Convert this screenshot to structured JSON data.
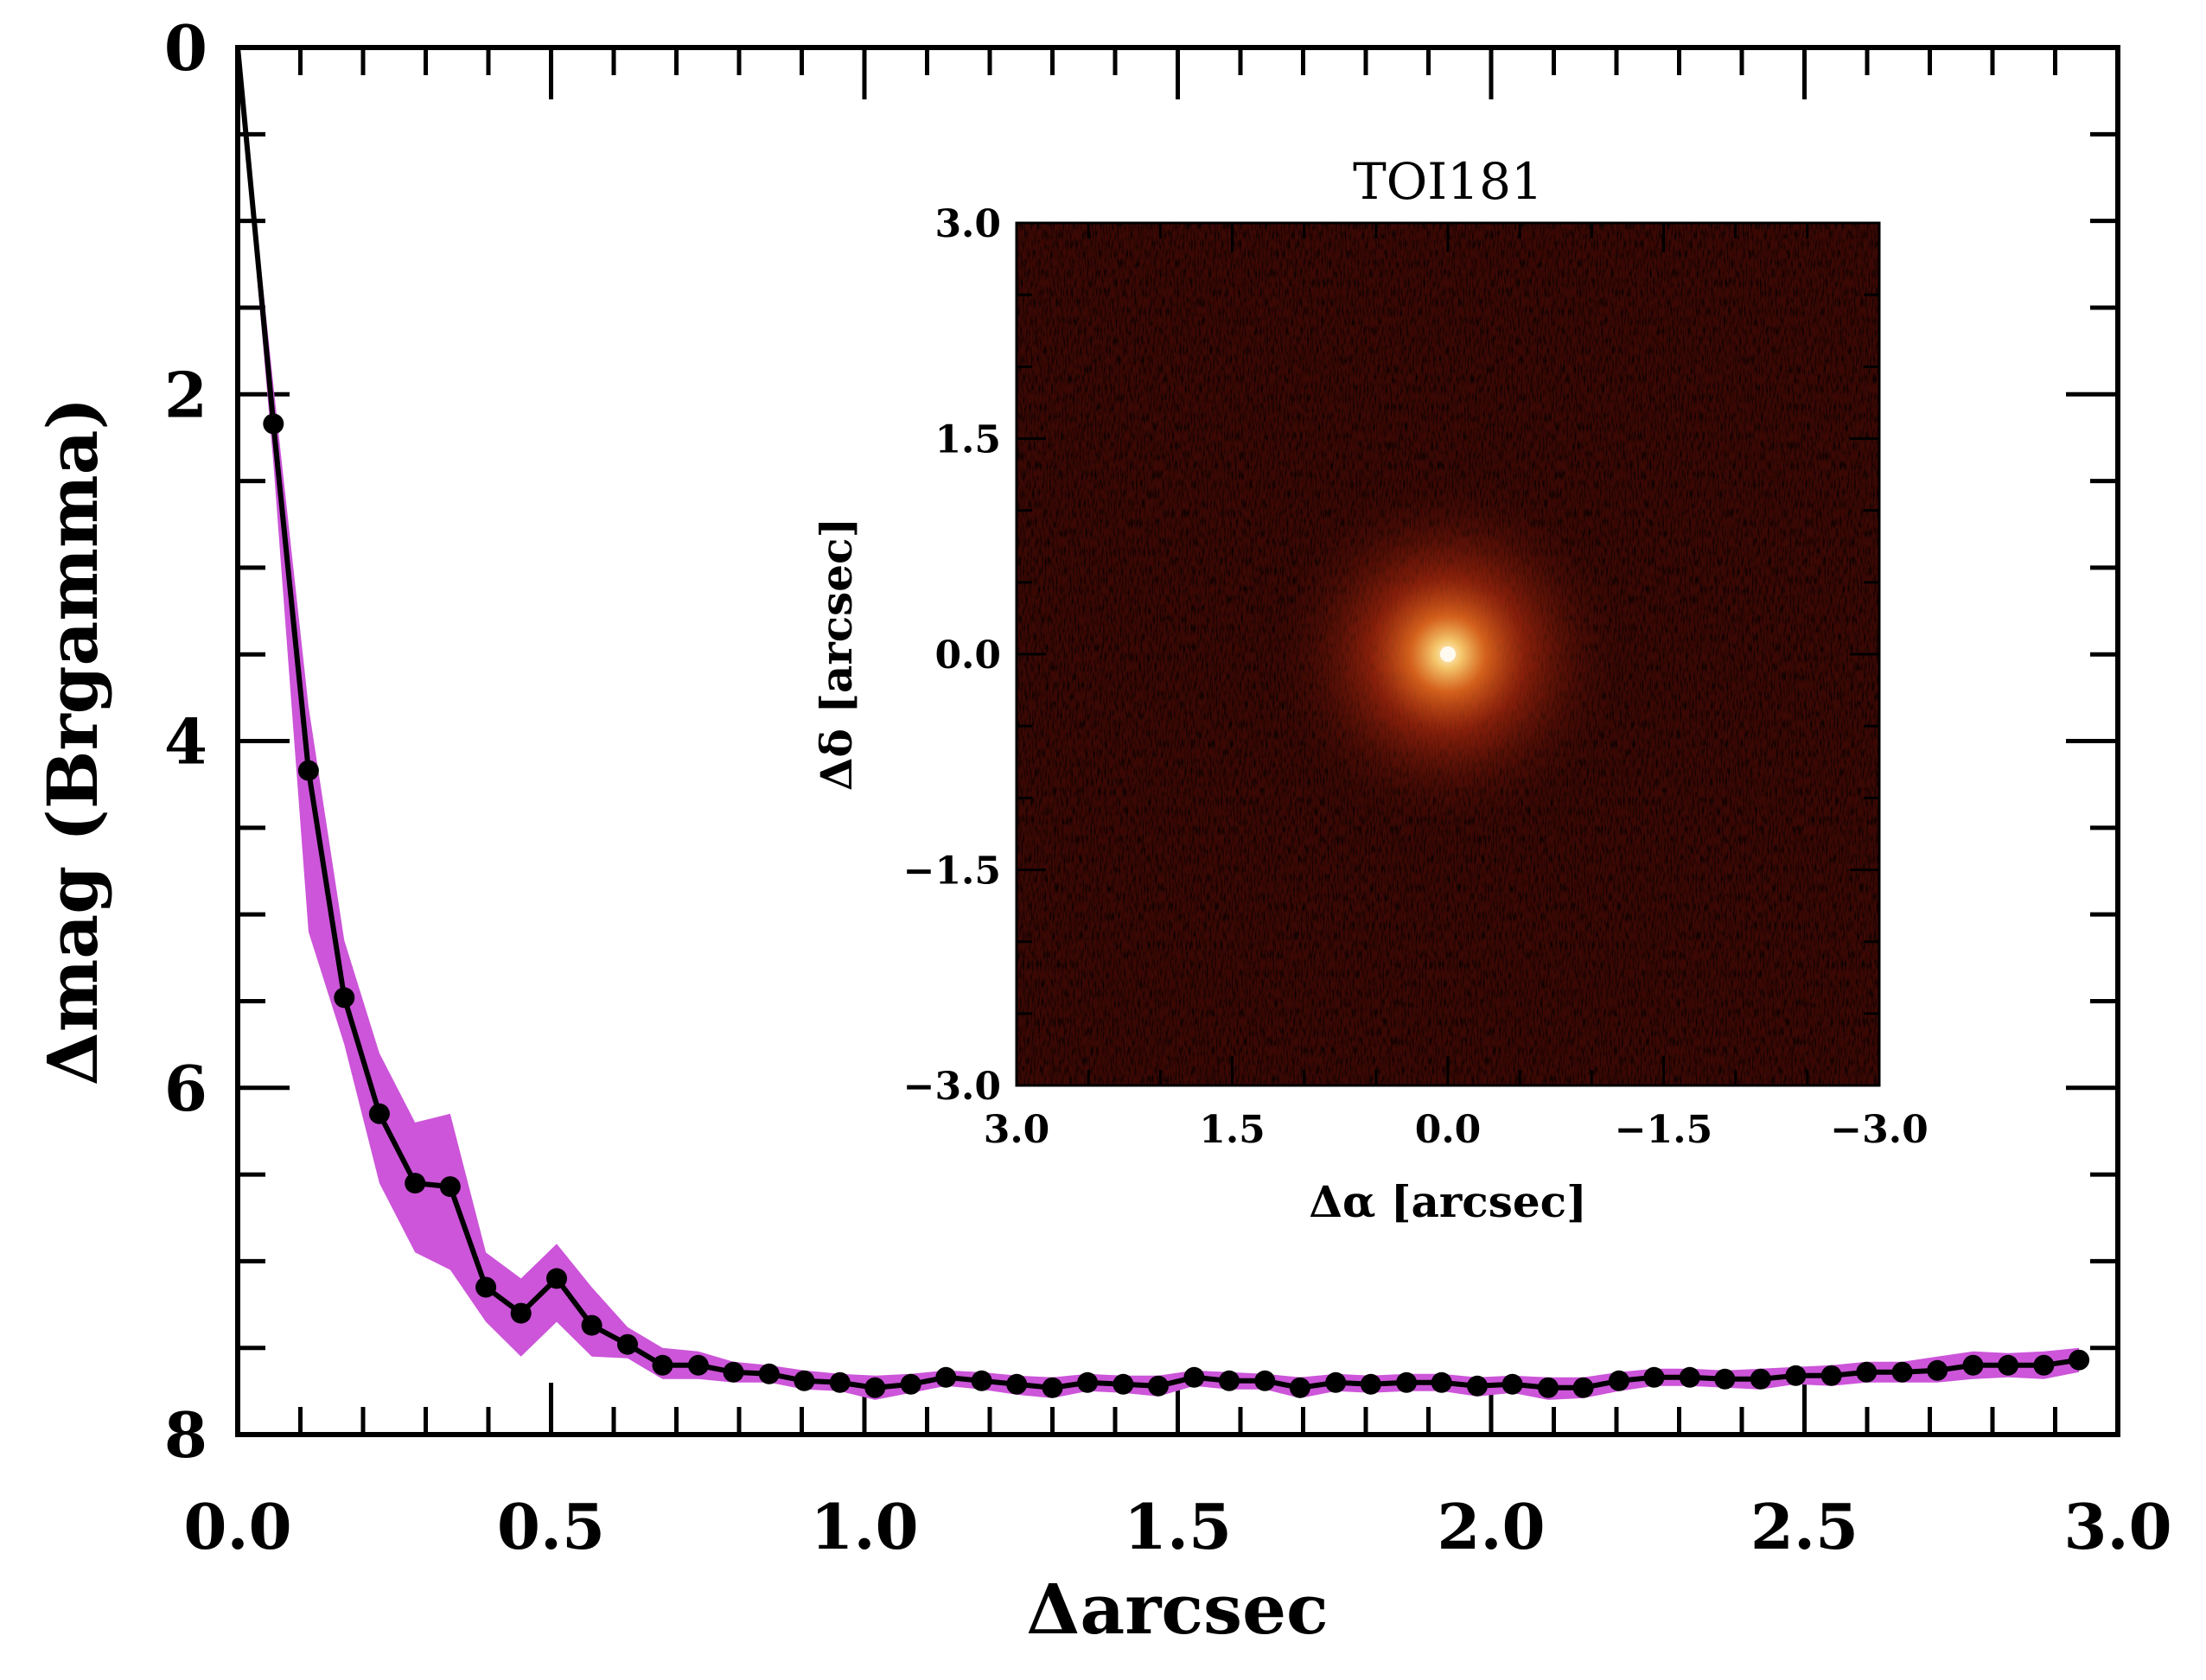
{
  "chart_data": [
    {
      "type": "line",
      "name": "contrast-curve",
      "xlabel": "Δarcsec",
      "ylabel": "Δmag (Brgamma)",
      "xlim": [
        0.0,
        3.0
      ],
      "ylim": [
        8,
        0
      ],
      "x_ticks": [
        "0.0",
        "0.5",
        "1.0",
        "1.5",
        "2.0",
        "2.5",
        "3.0"
      ],
      "y_ticks": [
        "0",
        "2",
        "4",
        "6",
        "8"
      ],
      "colors": {
        "line": "#000000",
        "band": "#cc55d9",
        "points": "#000000"
      },
      "series": [
        {
          "name": "contrast",
          "x": [
            0.0,
            0.057,
            0.113,
            0.17,
            0.226,
            0.283,
            0.339,
            0.396,
            0.452,
            0.509,
            0.565,
            0.622,
            0.678,
            0.735,
            0.791,
            0.848,
            0.904,
            0.961,
            1.017,
            1.074,
            1.13,
            1.187,
            1.243,
            1.3,
            1.356,
            1.413,
            1.469,
            1.526,
            1.582,
            1.639,
            1.695,
            1.752,
            1.808,
            1.865,
            1.921,
            1.978,
            2.034,
            2.091,
            2.147,
            2.204,
            2.26,
            2.317,
            2.373,
            2.43,
            2.486,
            2.543,
            2.599,
            2.656,
            2.712,
            2.769,
            2.825,
            2.882,
            2.938
          ],
          "y": [
            0.0,
            2.17,
            4.17,
            5.48,
            6.15,
            6.55,
            6.57,
            7.15,
            7.3,
            7.1,
            7.37,
            7.48,
            7.6,
            7.6,
            7.64,
            7.65,
            7.69,
            7.7,
            7.73,
            7.71,
            7.67,
            7.69,
            7.71,
            7.73,
            7.7,
            7.71,
            7.72,
            7.67,
            7.69,
            7.69,
            7.73,
            7.7,
            7.71,
            7.7,
            7.7,
            7.72,
            7.71,
            7.73,
            7.73,
            7.69,
            7.67,
            7.67,
            7.68,
            7.68,
            7.66,
            7.66,
            7.64,
            7.64,
            7.63,
            7.6,
            7.6,
            7.6,
            7.57
          ],
          "band_low": [
            0.0,
            1.95,
            3.8,
            5.15,
            5.8,
            6.2,
            6.15,
            6.95,
            7.1,
            6.9,
            7.15,
            7.38,
            7.5,
            7.52,
            7.58,
            7.6,
            7.63,
            7.65,
            7.66,
            7.65,
            7.63,
            7.64,
            7.66,
            7.67,
            7.65,
            7.66,
            7.66,
            7.63,
            7.64,
            7.65,
            7.67,
            7.65,
            7.66,
            7.65,
            7.65,
            7.67,
            7.66,
            7.67,
            7.67,
            7.64,
            7.62,
            7.62,
            7.63,
            7.62,
            7.61,
            7.6,
            7.58,
            7.58,
            7.55,
            7.52,
            7.53,
            7.52,
            7.5
          ],
          "band_high": [
            0.05,
            2.4,
            5.1,
            5.75,
            6.55,
            6.95,
            7.05,
            7.35,
            7.55,
            7.35,
            7.55,
            7.56,
            7.68,
            7.68,
            7.7,
            7.7,
            7.74,
            7.75,
            7.8,
            7.76,
            7.72,
            7.74,
            7.77,
            7.79,
            7.75,
            7.76,
            7.78,
            7.72,
            7.74,
            7.74,
            7.79,
            7.75,
            7.76,
            7.75,
            7.75,
            7.78,
            7.76,
            7.8,
            7.79,
            7.75,
            7.72,
            7.72,
            7.73,
            7.74,
            7.71,
            7.72,
            7.7,
            7.7,
            7.7,
            7.68,
            7.67,
            7.68,
            7.64
          ]
        }
      ]
    },
    {
      "type": "heatmap",
      "name": "speckle-image-inset",
      "title": "TOI181",
      "xlabel": "Δα [arcsec]",
      "ylabel": "Δδ [arcsec]",
      "xlim": [
        3.0,
        -3.0
      ],
      "ylim": [
        -3.0,
        3.0
      ],
      "x_ticks": [
        "3.0",
        "1.5",
        "0.0",
        "−1.5",
        "−3.0"
      ],
      "y_ticks": [
        "3.0",
        "1.5",
        "0.0",
        "−1.5",
        "−3.0"
      ],
      "source_center": [
        0.0,
        0.0
      ],
      "colors": {
        "background": "#3c0804",
        "glow_mid": "#c83210",
        "core": "#fff2c8"
      }
    }
  ]
}
